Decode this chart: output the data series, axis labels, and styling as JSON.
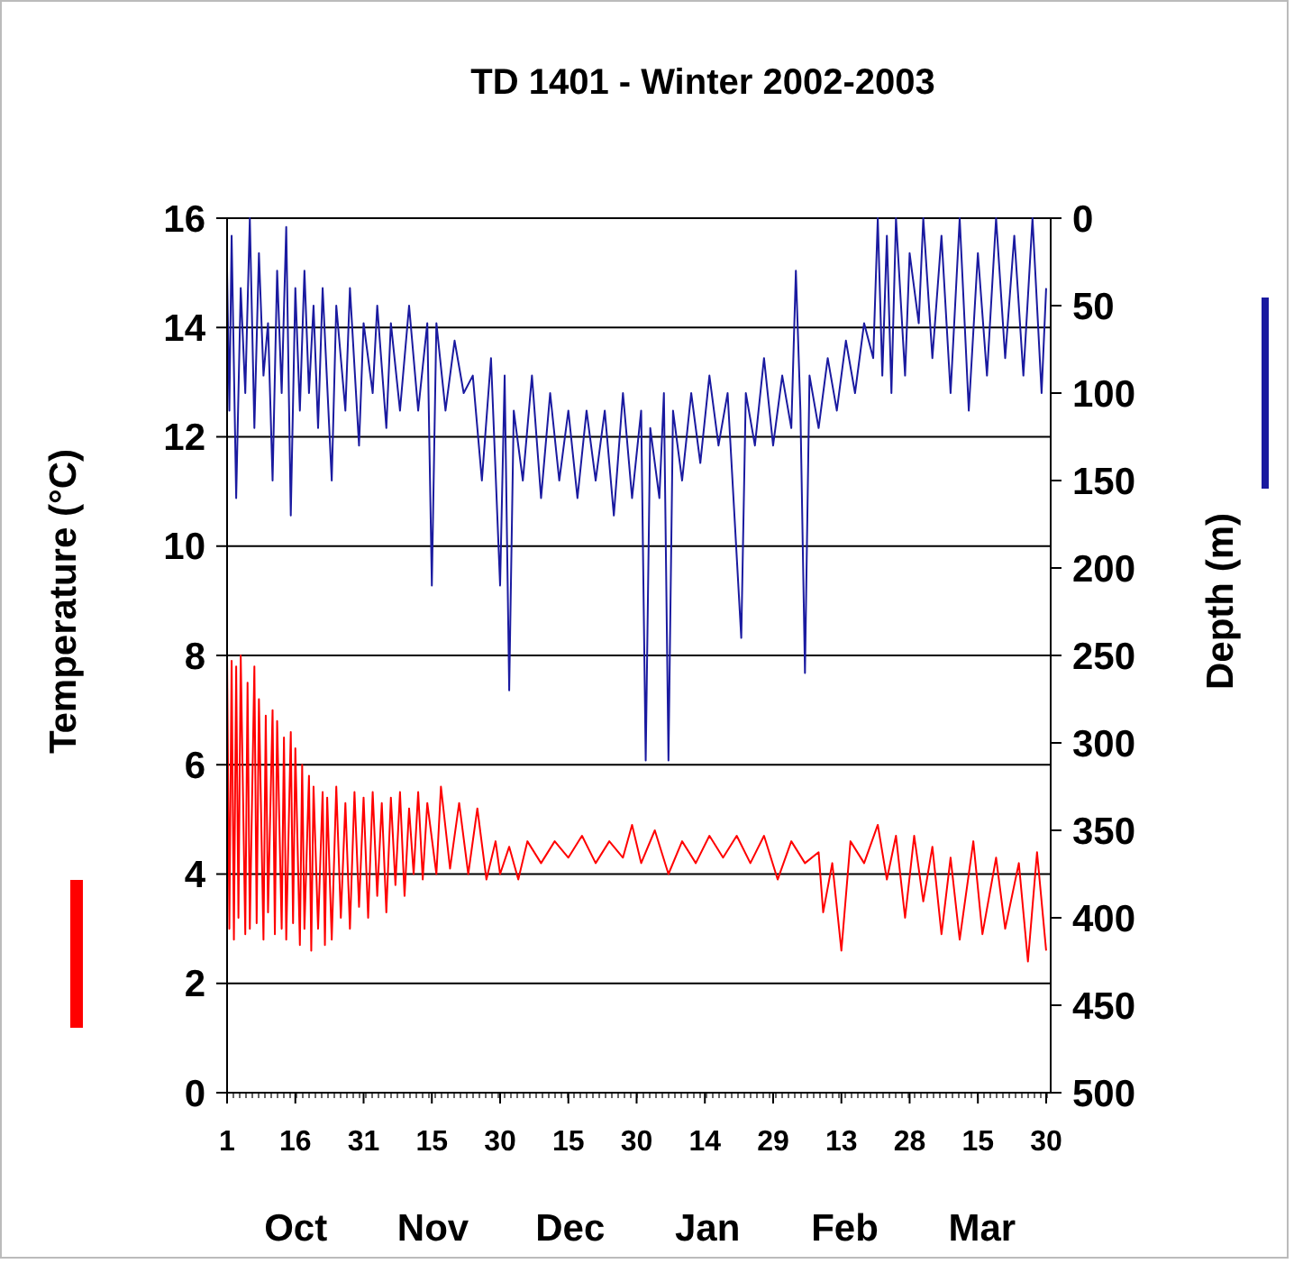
{
  "chart_data": {
    "type": "line",
    "title": "TD 1401 - Winter 2002-2003",
    "ylabel": "Temperature (°C)",
    "y2label": "Depth (m)",
    "annotations": [
      "Oct",
      "Nov",
      "Dec",
      "Jan",
      "Feb",
      "Mar"
    ],
    "xlim": [
      "2002-10-01",
      "2003-03-31"
    ],
    "xticks": [
      {
        "value": "2002-10-01",
        "label": "1"
      },
      {
        "value": "2002-10-16",
        "label": "16"
      },
      {
        "value": "2002-10-31",
        "label": "31"
      },
      {
        "value": "2002-11-15",
        "label": "15"
      },
      {
        "value": "2002-11-30",
        "label": "30"
      },
      {
        "value": "2002-12-15",
        "label": "15"
      },
      {
        "value": "2002-12-30",
        "label": "30"
      },
      {
        "value": "2003-01-14",
        "label": "14"
      },
      {
        "value": "2003-01-29",
        "label": "29"
      },
      {
        "value": "2003-02-13",
        "label": "13"
      },
      {
        "value": "2003-02-28",
        "label": "28"
      },
      {
        "value": "2003-03-15",
        "label": "15"
      },
      {
        "value": "2003-03-30",
        "label": "30"
      }
    ],
    "ylim": [
      0,
      16
    ],
    "yticks": [
      0,
      2,
      4,
      6,
      8,
      10,
      12,
      14,
      16
    ],
    "y2lim": [
      500,
      0
    ],
    "y2ticks": [
      0,
      50,
      100,
      150,
      200,
      250,
      300,
      350,
      400,
      450,
      500
    ],
    "grid": "y",
    "series": [
      {
        "color": "#ff0000",
        "x": [
          "2002-10-01",
          "2002-10-01T12:00",
          "2002-10-02",
          "2002-10-02T12:00",
          "2002-10-03",
          "2002-10-03T12:00",
          "2002-10-04",
          "2002-10-05",
          "2002-10-05T12:00",
          "2002-10-06",
          "2002-10-07",
          "2002-10-07T12:00",
          "2002-10-08",
          "2002-10-09",
          "2002-10-09T12:00",
          "2002-10-10",
          "2002-10-11",
          "2002-10-11T12:00",
          "2002-10-12",
          "2002-10-13",
          "2002-10-13T12:00",
          "2002-10-14",
          "2002-10-15",
          "2002-10-15T12:00",
          "2002-10-16",
          "2002-10-17",
          "2002-10-17T12:00",
          "2002-10-18",
          "2002-10-19",
          "2002-10-19T12:00",
          "2002-10-20",
          "2002-10-21",
          "2002-10-22",
          "2002-10-22T12:00",
          "2002-10-23",
          "2002-10-24",
          "2002-10-25",
          "2002-10-26",
          "2002-10-27",
          "2002-10-28",
          "2002-10-29",
          "2002-10-30",
          "2002-10-31",
          "2002-11-01",
          "2002-11-02",
          "2002-11-03",
          "2002-11-04",
          "2002-11-05",
          "2002-11-06",
          "2002-11-07",
          "2002-11-08",
          "2002-11-09",
          "2002-11-10",
          "2002-11-11",
          "2002-11-12",
          "2002-11-13",
          "2002-11-14",
          "2002-11-16",
          "2002-11-17",
          "2002-11-19",
          "2002-11-21",
          "2002-11-23",
          "2002-11-25",
          "2002-11-27",
          "2002-11-29",
          "2002-11-30",
          "2002-12-02",
          "2002-12-04",
          "2002-12-06",
          "2002-12-09",
          "2002-12-12",
          "2002-12-15",
          "2002-12-18",
          "2002-12-21",
          "2002-12-24",
          "2002-12-27",
          "2002-12-29",
          "2002-12-31",
          "2003-01-03",
          "2003-01-06",
          "2003-01-09",
          "2003-01-12",
          "2003-01-15",
          "2003-01-18",
          "2003-01-21",
          "2003-01-24",
          "2003-01-27",
          "2003-01-30",
          "2003-02-02",
          "2003-02-05",
          "2003-02-08",
          "2003-02-09",
          "2003-02-11",
          "2003-02-13",
          "2003-02-15",
          "2003-02-18",
          "2003-02-21",
          "2003-02-23",
          "2003-02-25",
          "2003-02-27",
          "2003-03-01",
          "2003-03-03",
          "2003-03-05",
          "2003-03-07",
          "2003-03-09",
          "2003-03-11",
          "2003-03-14",
          "2003-03-16",
          "2003-03-19",
          "2003-03-21",
          "2003-03-24",
          "2003-03-26",
          "2003-03-28",
          "2003-03-30"
        ],
        "values": [
          8.0,
          3.0,
          7.9,
          2.8,
          7.8,
          3.2,
          8.0,
          2.9,
          7.5,
          3.0,
          7.8,
          3.1,
          7.2,
          2.8,
          6.9,
          3.3,
          7.0,
          2.9,
          6.8,
          3.0,
          6.5,
          2.8,
          6.6,
          3.1,
          6.3,
          2.7,
          6.0,
          3.0,
          5.8,
          2.6,
          5.6,
          3.0,
          5.5,
          2.7,
          5.4,
          2.8,
          5.6,
          3.2,
          5.3,
          3.0,
          5.5,
          3.4,
          5.4,
          3.2,
          5.5,
          3.6,
          5.3,
          3.3,
          5.4,
          3.8,
          5.5,
          3.6,
          5.2,
          4.0,
          5.5,
          3.9,
          5.3,
          4.0,
          5.6,
          4.1,
          5.3,
          4.0,
          5.2,
          3.9,
          4.6,
          4.0,
          4.5,
          3.9,
          4.6,
          4.2,
          4.6,
          4.3,
          4.7,
          4.2,
          4.6,
          4.3,
          4.9,
          4.2,
          4.8,
          4.0,
          4.6,
          4.2,
          4.7,
          4.3,
          4.7,
          4.2,
          4.7,
          3.9,
          4.6,
          4.2,
          4.4,
          3.3,
          4.2,
          2.6,
          4.6,
          4.2,
          4.9,
          3.9,
          4.7,
          3.2,
          4.7,
          3.5,
          4.5,
          2.9,
          4.3,
          2.8,
          4.6,
          2.9,
          4.3,
          3.0,
          4.2,
          2.4,
          4.4,
          2.6
        ]
      },
      {
        "color": "#1a1aa0",
        "axis": "y2",
        "x": [
          "2002-10-01",
          "2002-10-01T12:00",
          "2002-10-02",
          "2002-10-03",
          "2002-10-04",
          "2002-10-05",
          "2002-10-06",
          "2002-10-07",
          "2002-10-08",
          "2002-10-09",
          "2002-10-10",
          "2002-10-11",
          "2002-10-12",
          "2002-10-13",
          "2002-10-14",
          "2002-10-15",
          "2002-10-16",
          "2002-10-17",
          "2002-10-18",
          "2002-10-19",
          "2002-10-20",
          "2002-10-21",
          "2002-10-22",
          "2002-10-24",
          "2002-10-25",
          "2002-10-27",
          "2002-10-28",
          "2002-10-30",
          "2002-10-31",
          "2002-11-02",
          "2002-11-03",
          "2002-11-05",
          "2002-11-06",
          "2002-11-08",
          "2002-11-10",
          "2002-11-12",
          "2002-11-14",
          "2002-11-15",
          "2002-11-16",
          "2002-11-18",
          "2002-11-20",
          "2002-11-22",
          "2002-11-24",
          "2002-11-26",
          "2002-11-28",
          "2002-11-30",
          "2002-12-01",
          "2002-12-02",
          "2002-12-03",
          "2002-12-05",
          "2002-12-07",
          "2002-12-09",
          "2002-12-11",
          "2002-12-13",
          "2002-12-15",
          "2002-12-17",
          "2002-12-19",
          "2002-12-21",
          "2002-12-23",
          "2002-12-25",
          "2002-12-27",
          "2002-12-29",
          "2002-12-31",
          "2003-01-01",
          "2003-01-02",
          "2003-01-04",
          "2003-01-05",
          "2003-01-06",
          "2003-01-07",
          "2003-01-09",
          "2003-01-11",
          "2003-01-13",
          "2003-01-15",
          "2003-01-17",
          "2003-01-19",
          "2003-01-22",
          "2003-01-23",
          "2003-01-25",
          "2003-01-27",
          "2003-01-29",
          "2003-01-31",
          "2003-02-02",
          "2003-02-03",
          "2003-02-04",
          "2003-02-05",
          "2003-02-06",
          "2003-02-08",
          "2003-02-10",
          "2003-02-12",
          "2003-02-14",
          "2003-02-16",
          "2003-02-18",
          "2003-02-20",
          "2003-02-21",
          "2003-02-22",
          "2003-02-23",
          "2003-02-24",
          "2003-02-25",
          "2003-02-27",
          "2003-02-28",
          "2003-03-02",
          "2003-03-03",
          "2003-03-05",
          "2003-03-07",
          "2003-03-09",
          "2003-03-11",
          "2003-03-13",
          "2003-03-15",
          "2003-03-17",
          "2003-03-19",
          "2003-03-21",
          "2003-03-23",
          "2003-03-25",
          "2003-03-27",
          "2003-03-29",
          "2003-03-30"
        ],
        "values": [
          30,
          110,
          10,
          160,
          40,
          100,
          0,
          120,
          20,
          90,
          60,
          150,
          30,
          100,
          5,
          170,
          40,
          110,
          30,
          100,
          50,
          120,
          40,
          150,
          50,
          110,
          40,
          130,
          60,
          100,
          50,
          120,
          60,
          110,
          50,
          110,
          60,
          210,
          60,
          110,
          70,
          100,
          90,
          150,
          80,
          210,
          90,
          270,
          110,
          150,
          90,
          160,
          100,
          150,
          110,
          160,
          110,
          150,
          110,
          170,
          100,
          160,
          110,
          310,
          120,
          160,
          100,
          310,
          110,
          150,
          100,
          140,
          90,
          130,
          100,
          240,
          100,
          130,
          80,
          130,
          90,
          120,
          30,
          110,
          260,
          90,
          120,
          80,
          110,
          70,
          100,
          60,
          80,
          0,
          90,
          10,
          100,
          0,
          90,
          20,
          60,
          0,
          80,
          10,
          100,
          0,
          110,
          20,
          90,
          0,
          80,
          10,
          90,
          0,
          100,
          40
        ]
      }
    ]
  }
}
